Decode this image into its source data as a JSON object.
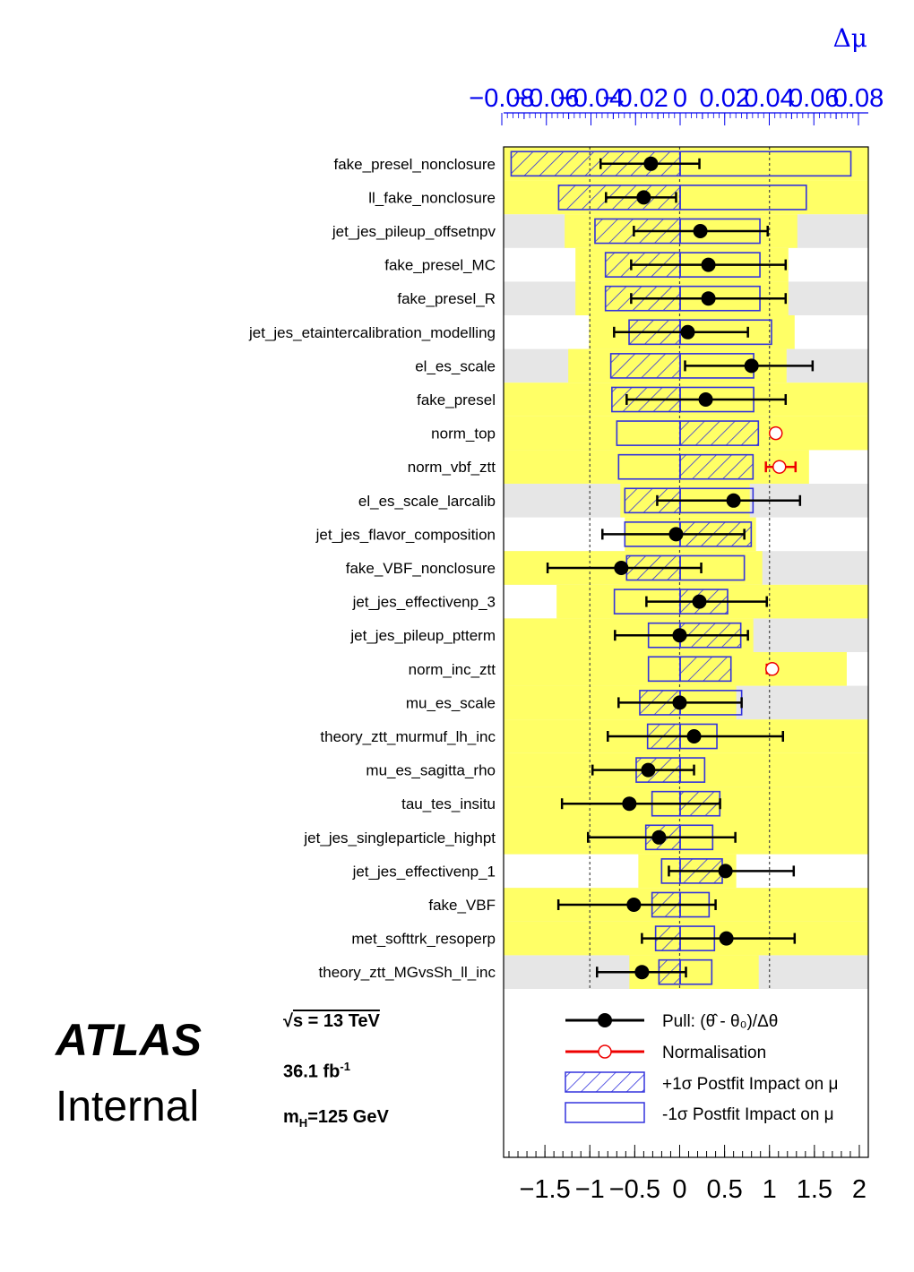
{
  "experiment": {
    "name": "ATLAS",
    "status": "Internal"
  },
  "labels": {
    "energy_prefix": "√",
    "energy": "s = 13 TeV",
    "lumi_value": "36.1 fb",
    "lumi_exp": "-1",
    "mass_m": "m",
    "mass_sub": "H",
    "mass_rest": "=125 GeV"
  },
  "legend": {
    "pull": "Pull: (θ̂ - θ₀)/Δθ",
    "normalisation": "Normalisation",
    "plus_impact": "+1σ Postfit Impact on μ",
    "minus_impact": "-1σ Postfit Impact on μ"
  },
  "colors": {
    "band": "#ffff66",
    "stripe": "#e6e6e6",
    "impact": "#3333dd",
    "pull": "#000000",
    "norm": "#ee0000",
    "top_axis": "#0000ee"
  },
  "chart_data": {
    "type": "pull-ranking",
    "top_axis": {
      "label": "Δμ",
      "range": [
        -0.08,
        0.08
      ],
      "tick_labels": [
        "−0.08",
        "−0.06",
        "−0.04",
        "−0.02",
        "0",
        "0.02",
        "0.04",
        "0.06",
        "0.08"
      ]
    },
    "bottom_axis": {
      "label": "",
      "range": [
        -1.96,
        2.1
      ],
      "tick_labels": [
        "−1.5",
        "−1",
        "−0.5",
        "0",
        "0.5",
        "1",
        "1.5",
        "2"
      ],
      "tick_values": [
        -1.5,
        -1,
        -0.5,
        0,
        0.5,
        1,
        1.5,
        2
      ]
    },
    "parameters": [
      {
        "name": "fake_presel_nonclosure",
        "kind": "pull",
        "pull": -0.32,
        "err_lo": -0.88,
        "err_hi": 0.22,
        "plus": -0.0758,
        "minus": 0.0766,
        "prefit_lo": -2.0,
        "prefit_hi": 2.1
      },
      {
        "name": "ll_fake_nonclosure",
        "kind": "pull",
        "pull": -0.4,
        "err_lo": -0.82,
        "err_hi": -0.04,
        "plus": -0.0545,
        "minus": 0.0566,
        "prefit_lo": -2.0,
        "prefit_hi": 2.1
      },
      {
        "name": "jet_jes_pileup_offsetnpv",
        "kind": "pull",
        "pull": 0.23,
        "err_lo": -0.51,
        "err_hi": 0.98,
        "plus": -0.0382,
        "minus": 0.0358,
        "prefit_lo": -1.28,
        "prefit_hi": 1.31
      },
      {
        "name": "fake_presel_MC",
        "kind": "pull",
        "pull": 0.32,
        "err_lo": -0.54,
        "err_hi": 1.18,
        "plus": -0.0335,
        "minus": 0.0358,
        "prefit_lo": -1.16,
        "prefit_hi": 1.21
      },
      {
        "name": "fake_presel_R",
        "kind": "pull",
        "pull": 0.32,
        "err_lo": -0.54,
        "err_hi": 1.18,
        "plus": -0.0335,
        "minus": 0.0358,
        "prefit_lo": -1.16,
        "prefit_hi": 1.21
      },
      {
        "name": "jet_jes_etaintercalibration_modelling",
        "kind": "pull",
        "pull": 0.09,
        "err_lo": -0.73,
        "err_hi": 0.76,
        "plus": -0.0229,
        "minus": 0.041,
        "prefit_lo": -1.01,
        "prefit_hi": 1.28
      },
      {
        "name": "el_es_scale",
        "kind": "pull",
        "pull": 0.8,
        "err_lo": 0.06,
        "err_hi": 1.48,
        "plus": -0.0311,
        "minus": 0.033,
        "prefit_lo": -1.24,
        "prefit_hi": 1.19
      },
      {
        "name": "fake_presel",
        "kind": "pull",
        "pull": 0.29,
        "err_lo": -0.59,
        "err_hi": 1.18,
        "plus": -0.0306,
        "minus": 0.033,
        "prefit_lo": -1.96,
        "prefit_hi": 2.1
      },
      {
        "name": "norm_top",
        "kind": "norm",
        "pull": 1.07,
        "err_lo": 1.03,
        "err_hi": 1.11,
        "plus": 0.0351,
        "minus": -0.0284,
        "prefit_lo": -1.96,
        "prefit_hi": 2.1
      },
      {
        "name": "norm_vbf_ztt",
        "kind": "norm",
        "pull": 1.11,
        "err_lo": 0.96,
        "err_hi": 1.29,
        "plus": 0.0327,
        "minus": -0.0276,
        "prefit_lo": -1.96,
        "prefit_hi": 1.44
      },
      {
        "name": "el_es_scale_larcalib",
        "kind": "pull",
        "pull": 0.6,
        "err_lo": -0.25,
        "err_hi": 1.34,
        "plus": -0.0248,
        "minus": 0.0327,
        "prefit_lo": -0.66,
        "prefit_hi": 0.78
      },
      {
        "name": "jet_jes_flavor_composition",
        "kind": "pull",
        "pull": -0.04,
        "err_lo": -0.86,
        "err_hi": 0.72,
        "plus": 0.0319,
        "minus": -0.0248,
        "prefit_lo": -0.61,
        "prefit_hi": 0.85
      },
      {
        "name": "fake_VBF_nonclosure",
        "kind": "pull",
        "pull": -0.65,
        "err_lo": -1.47,
        "err_hi": 0.24,
        "plus": -0.024,
        "minus": 0.0288,
        "prefit_lo": -1.96,
        "prefit_hi": 0.92
      },
      {
        "name": "jet_jes_effectivenp_3",
        "kind": "pull",
        "pull": 0.22,
        "err_lo": -0.37,
        "err_hi": 0.97,
        "plus": 0.0213,
        "minus": -0.0295,
        "prefit_lo": -1.37,
        "prefit_hi": 2.1
      },
      {
        "name": "jet_jes_pileup_ptterm",
        "kind": "pull",
        "pull": 0.0,
        "err_lo": -0.72,
        "err_hi": 0.76,
        "plus": 0.0272,
        "minus": -0.0142,
        "prefit_lo": -1.96,
        "prefit_hi": 0.82
      },
      {
        "name": "norm_inc_ztt",
        "kind": "norm",
        "pull": 1.03,
        "err_lo": 0.97,
        "err_hi": 1.07,
        "plus": 0.0228,
        "minus": -0.0142,
        "prefit_lo": -1.96,
        "prefit_hi": 1.86
      },
      {
        "name": "mu_es_scale",
        "kind": "pull",
        "pull": 0.0,
        "err_lo": -0.68,
        "err_hi": 0.69,
        "plus": -0.0181,
        "minus": 0.0276,
        "prefit_lo": -1.96,
        "prefit_hi": 0.63
      },
      {
        "name": "theory_ztt_murmuf_lh_inc",
        "kind": "pull",
        "pull": 0.16,
        "err_lo": -0.8,
        "err_hi": 1.15,
        "plus": -0.0146,
        "minus": 0.0165,
        "prefit_lo": -1.96,
        "prefit_hi": 2.1
      },
      {
        "name": "mu_es_sagitta_rho",
        "kind": "pull",
        "pull": -0.35,
        "err_lo": -0.97,
        "err_hi": 0.16,
        "plus": -0.0197,
        "minus": 0.011,
        "prefit_lo": -1.96,
        "prefit_hi": 2.1
      },
      {
        "name": "tau_tes_insitu",
        "kind": "pull",
        "pull": -0.56,
        "err_lo": -1.31,
        "err_hi": 0.45,
        "plus": 0.0178,
        "minus": -0.0126,
        "prefit_lo": -1.96,
        "prefit_hi": 2.1
      },
      {
        "name": "jet_jes_singleparticle_highpt",
        "kind": "pull",
        "pull": -0.23,
        "err_lo": -1.02,
        "err_hi": 0.62,
        "plus": -0.0154,
        "minus": 0.0146,
        "prefit_lo": -1.96,
        "prefit_hi": 2.1
      },
      {
        "name": "jet_jes_effectivenp_1",
        "kind": "pull",
        "pull": 0.51,
        "err_lo": -0.12,
        "err_hi": 1.27,
        "plus": 0.0189,
        "minus": -0.0083,
        "prefit_lo": -0.46,
        "prefit_hi": 0.63
      },
      {
        "name": "fake_VBF",
        "kind": "pull",
        "pull": -0.51,
        "err_lo": -1.35,
        "err_hi": 0.4,
        "plus": -0.0126,
        "minus": 0.013,
        "prefit_lo": -1.96,
        "prefit_hi": 2.1
      },
      {
        "name": "met_softtrk_resoperp",
        "kind": "pull",
        "pull": 0.52,
        "err_lo": -0.42,
        "err_hi": 1.28,
        "plus": -0.011,
        "minus": 0.0154,
        "prefit_lo": -1.96,
        "prefit_hi": 2.1
      },
      {
        "name": "theory_ztt_MGvsSh_ll_inc",
        "kind": "pull",
        "pull": -0.42,
        "err_lo": -0.92,
        "err_hi": 0.07,
        "plus": -0.0095,
        "minus": 0.0142,
        "prefit_lo": -0.56,
        "prefit_hi": 0.88
      }
    ]
  }
}
